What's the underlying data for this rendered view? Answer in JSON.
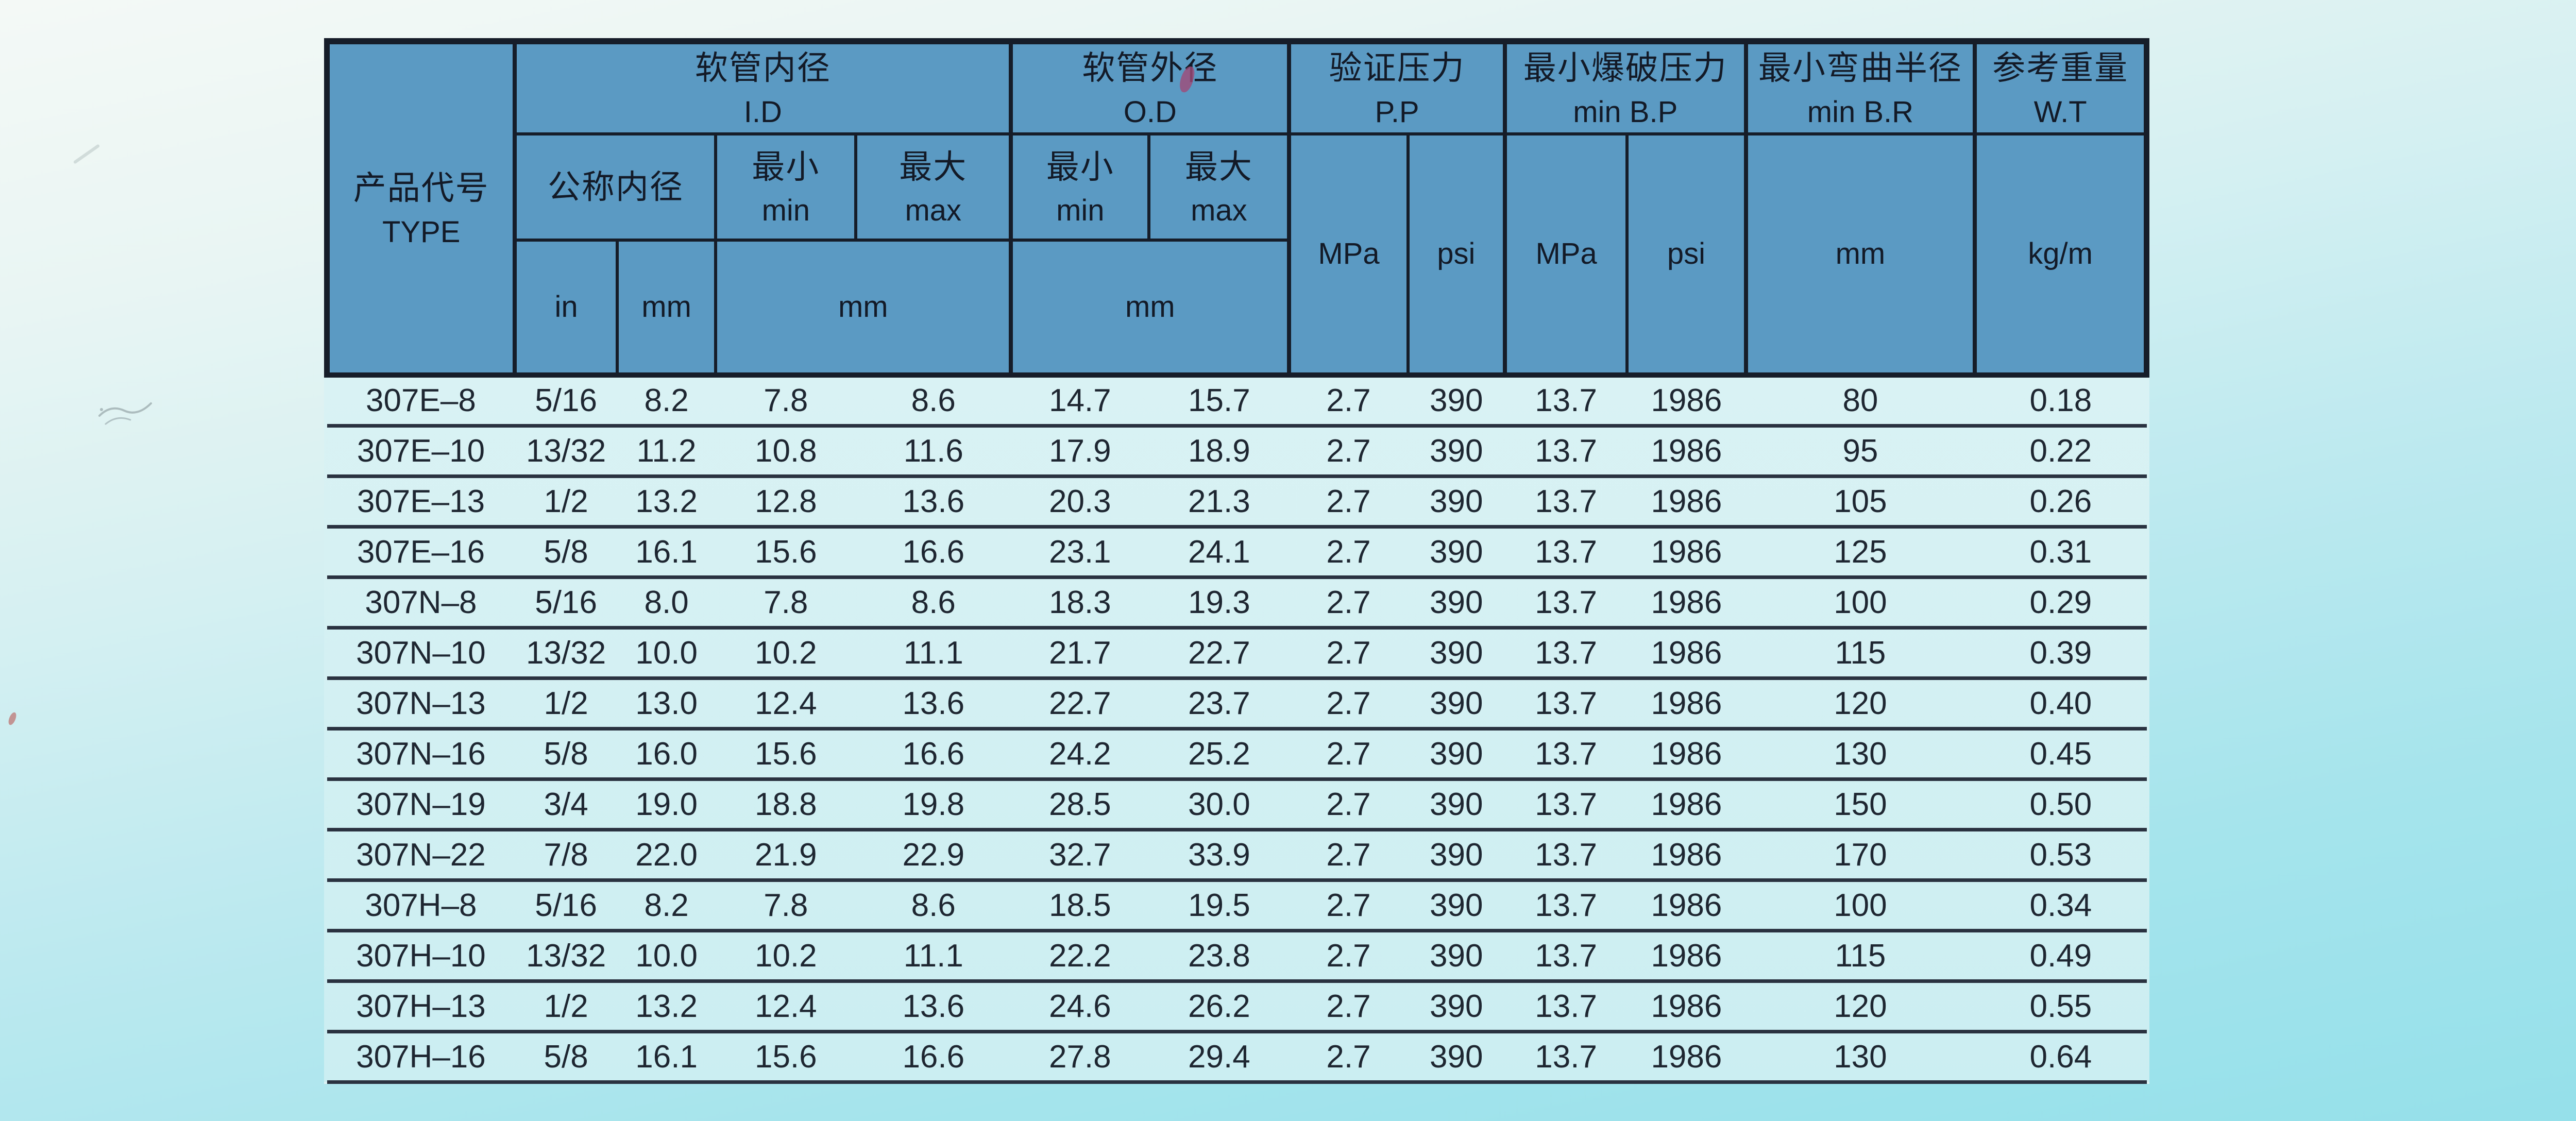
{
  "table": {
    "header": {
      "type": {
        "zh": "产品代号",
        "en": "TYPE"
      },
      "groups": {
        "id": {
          "zh": "软管内径",
          "en": "I.D"
        },
        "od": {
          "zh": "软管外径",
          "en": "O.D"
        },
        "pp": {
          "zh": "验证压力",
          "en": "P.P"
        },
        "bp": {
          "zh": "最小爆破压力",
          "en": "min B.P"
        },
        "br": {
          "zh": "最小弯曲半径",
          "en": "min B.R"
        },
        "wt": {
          "zh": "参考重量",
          "en": "W.T"
        }
      },
      "sub": {
        "nominal_id": "公称内径",
        "min": {
          "zh": "最小",
          "en": "min"
        },
        "max": {
          "zh": "最大",
          "en": "max"
        },
        "unit_in": "in",
        "unit_mm": "mm",
        "unit_mpa": "MPa",
        "unit_psi": "psi",
        "unit_kg_per_m": "kg/m"
      }
    },
    "columns": [
      "TYPE",
      "I.D nominal in",
      "I.D nominal mm",
      "I.D min mm",
      "I.D max mm",
      "O.D min mm",
      "O.D max mm",
      "P.P MPa",
      "P.P psi",
      "min B.P MPa",
      "min B.P psi",
      "min B.R mm",
      "W.T kg/m"
    ],
    "rows": [
      [
        "307E–8",
        "5/16",
        "8.2",
        "7.8",
        "8.6",
        "14.7",
        "15.7",
        "2.7",
        "390",
        "13.7",
        "1986",
        "80",
        "0.18"
      ],
      [
        "307E–10",
        "13/32",
        "11.2",
        "10.8",
        "11.6",
        "17.9",
        "18.9",
        "2.7",
        "390",
        "13.7",
        "1986",
        "95",
        "0.22"
      ],
      [
        "307E–13",
        "1/2",
        "13.2",
        "12.8",
        "13.6",
        "20.3",
        "21.3",
        "2.7",
        "390",
        "13.7",
        "1986",
        "105",
        "0.26"
      ],
      [
        "307E–16",
        "5/8",
        "16.1",
        "15.6",
        "16.6",
        "23.1",
        "24.1",
        "2.7",
        "390",
        "13.7",
        "1986",
        "125",
        "0.31"
      ],
      [
        "307N–8",
        "5/16",
        "8.0",
        "7.8",
        "8.6",
        "18.3",
        "19.3",
        "2.7",
        "390",
        "13.7",
        "1986",
        "100",
        "0.29"
      ],
      [
        "307N–10",
        "13/32",
        "10.0",
        "10.2",
        "11.1",
        "21.7",
        "22.7",
        "2.7",
        "390",
        "13.7",
        "1986",
        "115",
        "0.39"
      ],
      [
        "307N–13",
        "1/2",
        "13.0",
        "12.4",
        "13.6",
        "22.7",
        "23.7",
        "2.7",
        "390",
        "13.7",
        "1986",
        "120",
        "0.40"
      ],
      [
        "307N–16",
        "5/8",
        "16.0",
        "15.6",
        "16.6",
        "24.2",
        "25.2",
        "2.7",
        "390",
        "13.7",
        "1986",
        "130",
        "0.45"
      ],
      [
        "307N–19",
        "3/4",
        "19.0",
        "18.8",
        "19.8",
        "28.5",
        "30.0",
        "2.7",
        "390",
        "13.7",
        "1986",
        "150",
        "0.50"
      ],
      [
        "307N–22",
        "7/8",
        "22.0",
        "21.9",
        "22.9",
        "32.7",
        "33.9",
        "2.7",
        "390",
        "13.7",
        "1986",
        "170",
        "0.53"
      ],
      [
        "307H–8",
        "5/16",
        "8.2",
        "7.8",
        "8.6",
        "18.5",
        "19.5",
        "2.7",
        "390",
        "13.7",
        "1986",
        "100",
        "0.34"
      ],
      [
        "307H–10",
        "13/32",
        "10.0",
        "10.2",
        "11.1",
        "22.2",
        "23.8",
        "2.7",
        "390",
        "13.7",
        "1986",
        "115",
        "0.49"
      ],
      [
        "307H–13",
        "1/2",
        "13.2",
        "12.4",
        "13.6",
        "24.6",
        "26.2",
        "2.7",
        "390",
        "13.7",
        "1986",
        "120",
        "0.55"
      ],
      [
        "307H–16",
        "5/8",
        "16.1",
        "15.6",
        "16.6",
        "27.8",
        "29.4",
        "2.7",
        "390",
        "13.7",
        "1986",
        "130",
        "0.64"
      ]
    ]
  },
  "colors": {
    "page_bg_top": "#f4f9f6",
    "page_bg_bottom": "#95e0ea",
    "header_bg": "#5b9ac3",
    "body_bg": "#d6f1f3",
    "grid_line": "#161d29",
    "row_line": "#2a3240",
    "text": "#1e2631",
    "red_mark": "#a04a78"
  }
}
